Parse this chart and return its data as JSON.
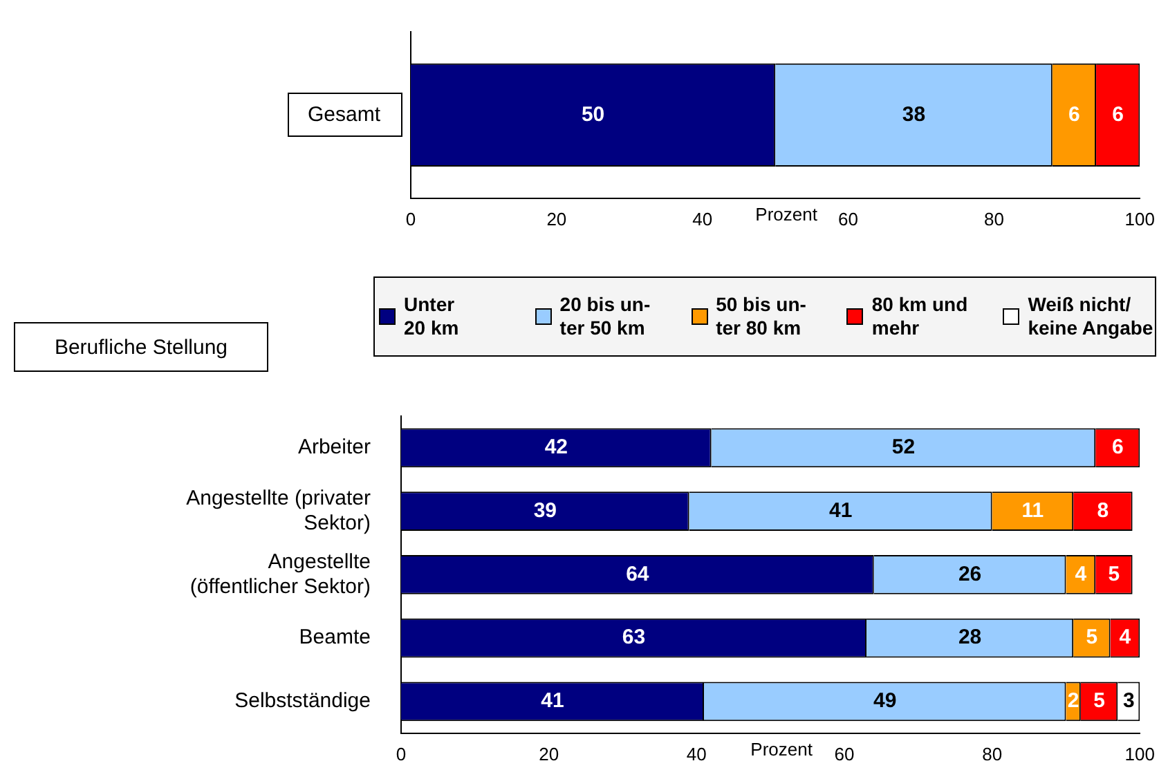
{
  "chart_data": [
    {
      "type": "bar",
      "orientation": "horizontal",
      "stacked": true,
      "categories": [
        "Gesamt"
      ],
      "xlabel": "Prozent",
      "xlim": [
        0,
        100
      ],
      "xticks": [
        0,
        20,
        40,
        60,
        80,
        100
      ],
      "data_labels": true,
      "series": [
        {
          "color": "#000080",
          "values": [
            50
          ]
        },
        {
          "color": "#99ccff",
          "values": [
            38
          ]
        },
        {
          "color": "#ff9900",
          "values": [
            6
          ]
        },
        {
          "color": "#ff0000",
          "values": [
            6
          ]
        }
      ]
    },
    {
      "type": "bar",
      "orientation": "horizontal",
      "stacked": true,
      "ylabel": "Berufliche Stellung",
      "categories": [
        "Arbeiter",
        "Angestellte (privater Sektor)",
        "Angestellte (öffentlicher Sektor)",
        "Beamte",
        "Selbstständige"
      ],
      "xlabel": "Prozent",
      "xlim": [
        0,
        100
      ],
      "xticks": [
        0,
        20,
        40,
        60,
        80,
        100
      ],
      "data_labels": true,
      "legend": "top",
      "series": [
        {
          "name": "Unter\n20 km",
          "color": "#000080",
          "values": [
            42,
            39,
            64,
            63,
            41
          ]
        },
        {
          "name": "20 bis un-\nter 50 km",
          "color": "#99ccff",
          "values": [
            52,
            41,
            26,
            28,
            49
          ]
        },
        {
          "name": "50 bis un-\nter 80 km",
          "color": "#ff9900",
          "values": [
            null,
            11,
            4,
            5,
            2
          ]
        },
        {
          "name": "80 km und\nmehr",
          "color": "#ff0000",
          "values": [
            6,
            8,
            5,
            4,
            5
          ]
        },
        {
          "name": "Weiß nicht/\nkeine Angabe",
          "color": "#ffffff",
          "values": [
            null,
            null,
            null,
            null,
            3
          ]
        }
      ]
    }
  ]
}
